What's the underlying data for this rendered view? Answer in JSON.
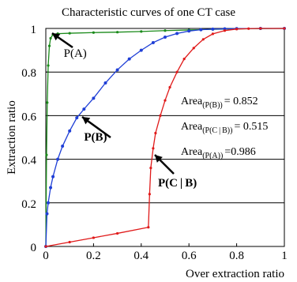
{
  "chart_data": {
    "type": "line",
    "title": "Characteristic curves of one CT case",
    "xlabel": "Over extraction ratio",
    "ylabel": "Extraction ratio",
    "xlim": [
      0,
      1
    ],
    "ylim": [
      0,
      1
    ],
    "x_ticks": [
      {
        "value": 0,
        "label": "0"
      },
      {
        "value": 0.2,
        "label": "0.2"
      },
      {
        "value": 0.4,
        "label": "0.4"
      },
      {
        "value": 0.6,
        "label": "0.6"
      },
      {
        "value": 0.8,
        "label": "0.8"
      },
      {
        "value": 1,
        "label": "1"
      }
    ],
    "y_ticks": [
      {
        "value": 0,
        "label": "0"
      },
      {
        "value": 0.2,
        "label": "0.2"
      },
      {
        "value": 0.4,
        "label": "0.4"
      },
      {
        "value": 0.6,
        "label": "0.6"
      },
      {
        "value": 0.8,
        "label": "0.8"
      },
      {
        "value": 1,
        "label": "1"
      }
    ],
    "grid": "horizontal",
    "series": [
      {
        "name": "P(A)",
        "color": "#1a8a1a",
        "x": [
          0,
          0.003,
          0.006,
          0.01,
          0.015,
          0.02,
          0.03,
          0.05,
          0.1,
          0.2,
          0.3,
          0.4,
          0.5,
          0.6,
          0.7,
          0.8,
          0.9,
          1.0
        ],
        "y": [
          0.0,
          0.42,
          0.66,
          0.83,
          0.92,
          0.955,
          0.972,
          0.976,
          0.978,
          0.981,
          0.983,
          0.986,
          0.99,
          0.993,
          0.996,
          0.998,
          0.999,
          1.0
        ]
      },
      {
        "name": "P(B)",
        "color": "#1f3fd6",
        "x": [
          0,
          0.005,
          0.01,
          0.02,
          0.03,
          0.05,
          0.07,
          0.1,
          0.13,
          0.16,
          0.2,
          0.25,
          0.3,
          0.35,
          0.4,
          0.45,
          0.5,
          0.55,
          0.6,
          0.65,
          0.7,
          0.75,
          0.8,
          0.9,
          1.0
        ],
        "y": [
          0.0,
          0.15,
          0.2,
          0.27,
          0.32,
          0.4,
          0.46,
          0.53,
          0.59,
          0.63,
          0.68,
          0.75,
          0.81,
          0.86,
          0.9,
          0.935,
          0.96,
          0.977,
          0.988,
          0.994,
          0.997,
          0.998,
          0.999,
          1.0,
          1.0
        ]
      },
      {
        "name": "P(C | B)",
        "color": "#e01a1a",
        "x": [
          0,
          0.1,
          0.2,
          0.3,
          0.43,
          0.435,
          0.44,
          0.45,
          0.46,
          0.48,
          0.5,
          0.52,
          0.55,
          0.58,
          0.62,
          0.66,
          0.7,
          0.75,
          0.8,
          0.85,
          0.9,
          1.0
        ],
        "y": [
          0.0,
          0.02,
          0.04,
          0.06,
          0.088,
          0.24,
          0.36,
          0.45,
          0.52,
          0.6,
          0.67,
          0.73,
          0.8,
          0.86,
          0.91,
          0.95,
          0.975,
          0.99,
          0.997,
          0.999,
          1.0,
          1.0
        ]
      }
    ],
    "annotations": [
      {
        "text": "P(A)",
        "x": 0.075,
        "y": 0.87
      },
      {
        "text": "P(B)",
        "x": 0.16,
        "y": 0.485
      },
      {
        "text": "P(C | B)",
        "x": 0.47,
        "y": 0.275
      }
    ],
    "area_labels": [
      {
        "prefix": "Area",
        "sub": "(P(B))",
        "value": "= 0.852"
      },
      {
        "prefix": "Area",
        "sub": "(P(C | B))",
        "value": "= 0.515"
      },
      {
        "prefix": "Area",
        "sub": "(P(A))",
        "value": "=0.986"
      }
    ]
  }
}
